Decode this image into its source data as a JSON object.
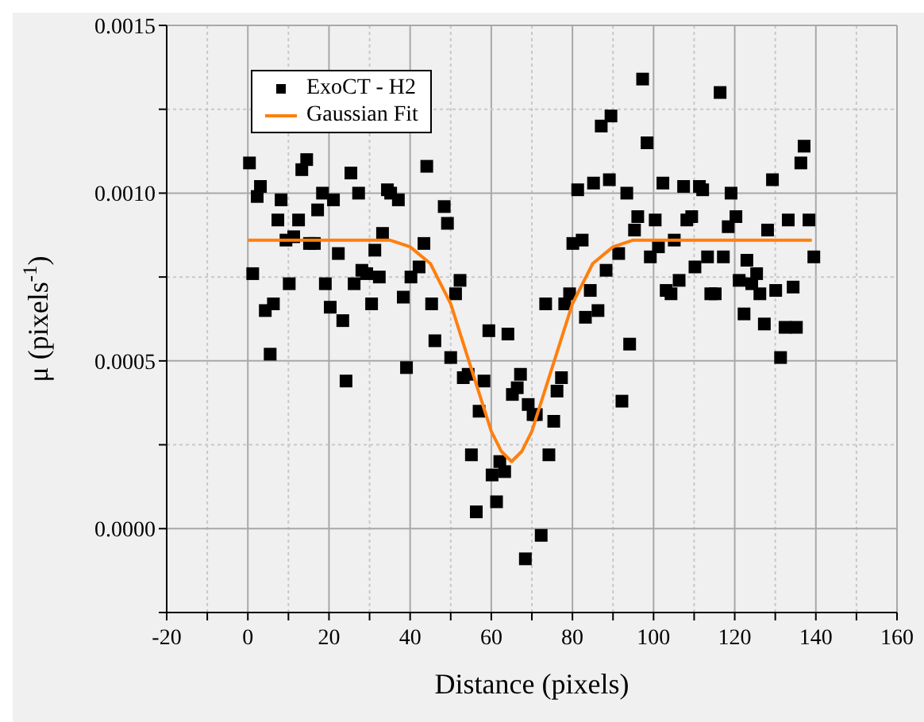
{
  "chart_data": {
    "type": "scatter",
    "xlabel": "Distance (pixels)",
    "ylabel": "μ (pixels$^{-1}$)",
    "xlim": [
      -20,
      160
    ],
    "ylim": [
      -0.00025,
      0.0015
    ],
    "xticks": [
      -20,
      {
        "value": -10,
        "label": null
      },
      0,
      {
        "value": 10,
        "label": null
      },
      20,
      {
        "value": 30,
        "label": null
      },
      40,
      {
        "value": 50,
        "label": null
      },
      60,
      {
        "value": 70,
        "label": null
      },
      80,
      {
        "value": 90,
        "label": null
      },
      100,
      {
        "value": 110,
        "label": null
      },
      120,
      {
        "value": 130,
        "label": null
      },
      140,
      {
        "value": 150,
        "label": null
      },
      160
    ],
    "yticks": [
      {
        "value": -0.00025,
        "label": null
      },
      {
        "value": 0,
        "label": "0.0000"
      },
      {
        "value": 0.00025,
        "label": null
      },
      {
        "value": 0.0005,
        "label": "0.0005"
      },
      {
        "value": 0.00075,
        "label": null
      },
      {
        "value": 0.001,
        "label": "0.0010"
      },
      {
        "value": 0.00125,
        "label": null
      },
      {
        "value": 0.0015,
        "label": "0.0015"
      }
    ],
    "grid": true,
    "legend": "top left",
    "series": [
      {
        "name": "ExoCT - H2",
        "type": "scatter",
        "color": "#000000",
        "marker": "square",
        "x": [
          0.4,
          1.2,
          2.3,
          3.1,
          4.3,
          5.5,
          6.3,
          7.4,
          8.2,
          9.4,
          10.2,
          11.3,
          12.5,
          13.3,
          14.5,
          15.2,
          16.4,
          17.2,
          18.4,
          19.1,
          20.3,
          21.1,
          22.3,
          23.4,
          24.2,
          25.4,
          26.2,
          27.3,
          28.1,
          29.3,
          30.5,
          31.3,
          32.4,
          33.2,
          34.4,
          35.2,
          37.1,
          38.3,
          39.1,
          40.2,
          42.2,
          43.4,
          44.1,
          45.3,
          46.1,
          48.4,
          49.2,
          50,
          51.2,
          52.3,
          53.1,
          54.3,
          55.1,
          56.3,
          57,
          58.2,
          59.4,
          60.2,
          61.3,
          62.1,
          63.3,
          64.1,
          65.2,
          66.4,
          67.2,
          68.4,
          69.1,
          70.3,
          71.1,
          72.3,
          73.4,
          74.2,
          75.4,
          76.2,
          77.3,
          78.1,
          79.3,
          80.1,
          81.3,
          82.4,
          83.2,
          84.4,
          85.2,
          86.3,
          87.1,
          88.3,
          89.1,
          89.5,
          91.4,
          92.2,
          93.4,
          94.1,
          95.3,
          96.1,
          97.3,
          98.4,
          99.2,
          100.4,
          101.2,
          102.3,
          103.1,
          104.3,
          105.1,
          106.3,
          107.4,
          108.2,
          109.4,
          110.2,
          111.3,
          112.1,
          113.3,
          114.1,
          115.2,
          116.4,
          117.2,
          118.4,
          119.1,
          120.3,
          121.1,
          122.3,
          123,
          124.2,
          125.4,
          126.2,
          127.3,
          128.1,
          129.3,
          130.1,
          131.3,
          132.4,
          133.2,
          134.4,
          135.2,
          136.3,
          137.1,
          138.3,
          139.5
        ],
        "values": [
          0.00109,
          0.00076,
          0.00099,
          0.00102,
          0.00065,
          0.00052,
          0.00067,
          0.00092,
          0.00098,
          0.00086,
          0.00073,
          0.00087,
          0.00092,
          0.00107,
          0.0011,
          0.00085,
          0.00085,
          0.00095,
          0.001,
          0.00073,
          0.00066,
          0.00098,
          0.00082,
          0.00062,
          0.00044,
          0.00106,
          0.00073,
          0.001,
          0.00077,
          0.00076,
          0.00067,
          0.00083,
          0.00075,
          0.00088,
          0.00101,
          0.001,
          0.00098,
          0.00069,
          0.00048,
          0.00075,
          0.00078,
          0.00085,
          0.00108,
          0.00067,
          0.00056,
          0.00096,
          0.00091,
          0.00051,
          0.0007,
          0.00074,
          0.00045,
          0.00046,
          0.00022,
          5e-05,
          0.00035,
          0.00044,
          0.00059,
          0.00016,
          8e-05,
          0.0002,
          0.00017,
          0.00058,
          0.0004,
          0.00042,
          0.00046,
          -9e-05,
          0.00037,
          0.00034,
          0.00034,
          -2e-05,
          0.00067,
          0.00022,
          0.00032,
          0.00041,
          0.00045,
          0.00067,
          0.0007,
          0.00085,
          0.00101,
          0.00086,
          0.00063,
          0.00071,
          0.00103,
          0.00065,
          0.0012,
          0.00077,
          0.00104,
          0.00123,
          0.00082,
          0.00038,
          0.001,
          0.00055,
          0.00089,
          0.00093,
          0.00134,
          0.00115,
          0.00081,
          0.00092,
          0.00084,
          0.00103,
          0.00071,
          0.0007,
          0.00086,
          0.00074,
          0.00102,
          0.00092,
          0.00093,
          0.00078,
          0.00102,
          0.00101,
          0.00081,
          0.0007,
          0.0007,
          0.0013,
          0.00081,
          0.0009,
          0.001,
          0.00093,
          0.00074,
          0.00064,
          0.0008,
          0.00073,
          0.00076,
          0.0007,
          0.00061,
          0.00089,
          0.00104,
          0.00071,
          0.00051,
          0.0006,
          0.00092,
          0.00072,
          0.0006,
          0.00109,
          0.00114,
          0.00092,
          0.00081
        ]
      },
      {
        "name": "Gaussian Fit",
        "type": "line",
        "color": "#ff7f0e",
        "marker": "none",
        "line_style": "solid",
        "x": [
          0,
          10,
          20,
          30,
          35,
          40,
          45,
          50,
          55,
          60,
          62.5,
          65,
          67.5,
          70,
          75,
          80,
          85,
          90,
          95,
          100,
          110,
          120,
          130,
          139
        ],
        "values": [
          0.00086,
          0.00086,
          0.00086,
          0.00086,
          0.00086,
          0.00084,
          0.00079,
          0.00067,
          0.00048,
          0.00029,
          0.00023,
          0.0002,
          0.00023,
          0.00029,
          0.00048,
          0.00067,
          0.00079,
          0.00084,
          0.00086,
          0.00086,
          0.00086,
          0.00086,
          0.00086,
          0.00086
        ]
      }
    ]
  }
}
